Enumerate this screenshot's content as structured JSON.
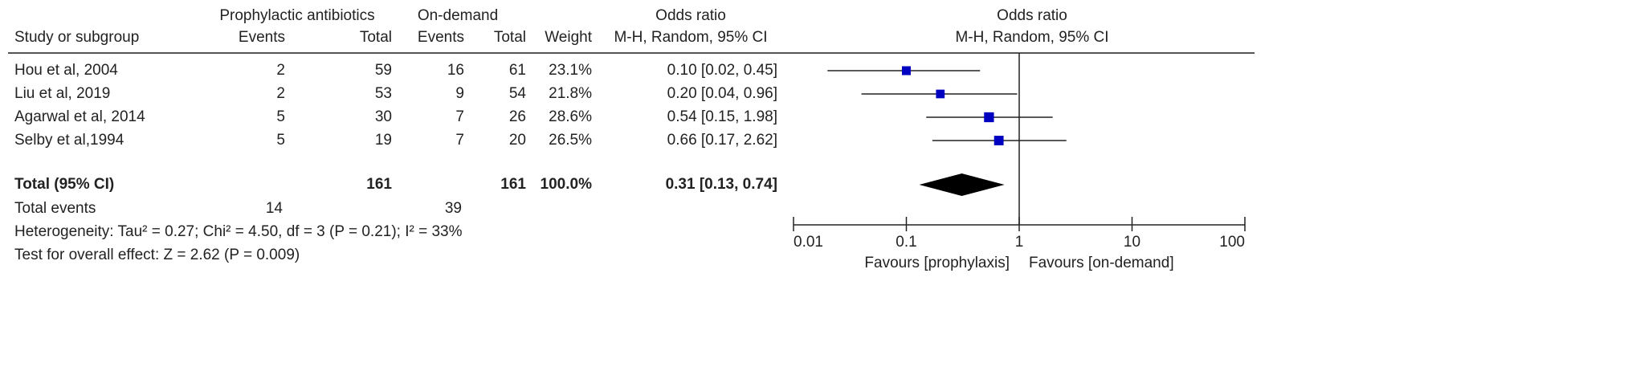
{
  "table": {
    "group_headers": [
      "Prophylactic antibiotics",
      "On-demand",
      "Odds ratio"
    ],
    "columns": [
      "Study or subgroup",
      "Events",
      "Total",
      "Events",
      "Total",
      "Weight",
      "M-H, Random, 95% CI"
    ],
    "studies": [
      {
        "name": "Hou et al, 2004",
        "events_1": 2,
        "total_1": 59,
        "events_2": 16,
        "total_2": 61,
        "weight": "23.1%",
        "or": "0.10 [0.02, 0.45]"
      },
      {
        "name": "Liu et al, 2019",
        "events_1": 2,
        "total_1": 53,
        "events_2": 9,
        "total_2": 54,
        "weight": "21.8%",
        "or": "0.20 [0.04, 0.96]"
      },
      {
        "name": "Agarwal et al, 2014",
        "events_1": 5,
        "total_1": 30,
        "events_2": 7,
        "total_2": 26,
        "weight": "28.6%",
        "or": "0.54 [0.15, 1.98]"
      },
      {
        "name": "Selby et al,1994",
        "events_1": 5,
        "total_1": 19,
        "events_2": 7,
        "total_2": 20,
        "weight": "26.5%",
        "or": "0.66 [0.17, 2.62]"
      }
    ],
    "total": {
      "name": "Total (95% CI)",
      "total_1": 161,
      "total_2": 161,
      "weight": "100.0%",
      "or": "0.31 [0.13, 0.74]"
    },
    "total_events": {
      "name": "Total events",
      "events_1": 14,
      "events_2": 39
    },
    "heterogeneity": "Heterogeneity: Tau² = 0.27; Chi² = 4.50, df = 3 (P = 0.21); I² = 33%",
    "overall_effect": "Test for overall effect: Z = 2.62 (P = 0.009)"
  },
  "chart_data": {
    "type": "forest",
    "title": "Odds ratio",
    "subtitle": "M-H, Random, 95% CI",
    "log_x": true,
    "xlim": [
      0.01,
      100
    ],
    "xticks": [
      0.01,
      0.1,
      1,
      10,
      100
    ],
    "reference_line": 1,
    "favours": [
      "Favours [prophylaxis]",
      "Favours [on-demand]"
    ],
    "color": "#0000c0",
    "studies": {
      "estimates": [
        0.1,
        0.2,
        0.54,
        0.66
      ],
      "lower": [
        0.02,
        0.04,
        0.15,
        0.17
      ],
      "upper": [
        0.45,
        0.96,
        1.98,
        2.62
      ],
      "weights": [
        23.1,
        21.8,
        28.6,
        26.5
      ]
    },
    "pooled": {
      "estimate": 0.31,
      "lower": 0.13,
      "upper": 0.74,
      "color": "#000000"
    }
  }
}
